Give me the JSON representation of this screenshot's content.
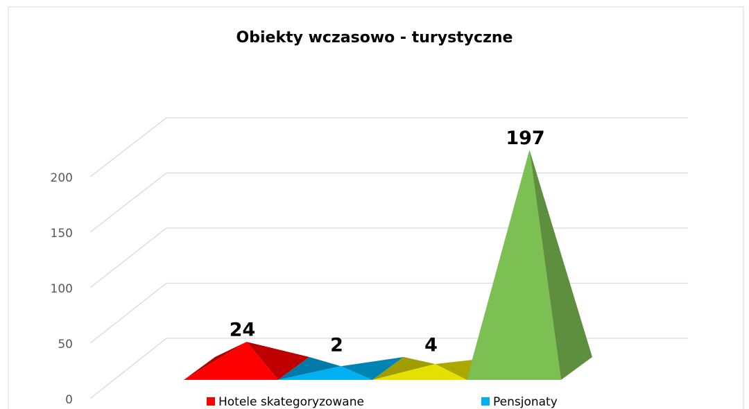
{
  "chart_data": {
    "type": "pyramid3d",
    "title": "Obiekty wczasowo - turystyczne",
    "series": [
      {
        "name": "Hotele skategoryzowane",
        "color": "#ff0000",
        "values": [
          24
        ]
      },
      {
        "name": "Pensjonaty",
        "color": "#00b0f0",
        "values": [
          2
        ]
      },
      {
        "color": "#e5e000",
        "values": [
          4
        ]
      },
      {
        "color": "#7cbf52",
        "values": [
          197
        ]
      }
    ],
    "ylim": [
      0,
      200
    ],
    "yticks": [
      0,
      50,
      100,
      150,
      200
    ],
    "grid": true
  }
}
